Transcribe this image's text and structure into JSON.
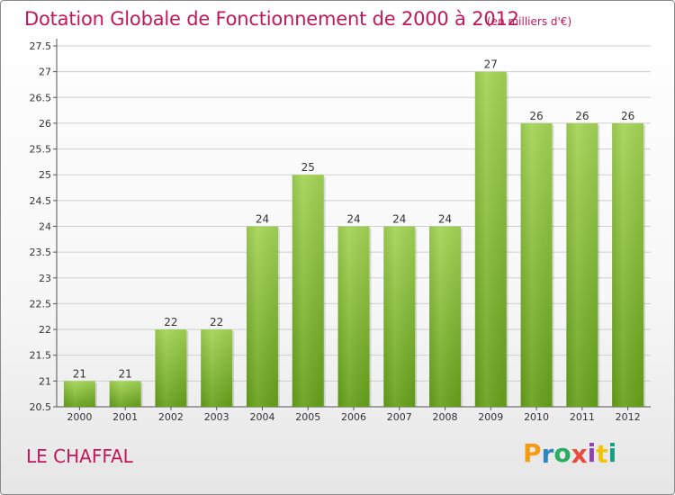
{
  "header": {
    "title": "Dotation Globale de Fonctionnement de 2000 à 2012",
    "subtitle": "(en milliers d'€)"
  },
  "footer": {
    "commune": "LE CHAFFAL",
    "logo": "Proxiti"
  },
  "chart_data": {
    "type": "bar",
    "title": "Dotation Globale de Fonctionnement de 2000 à 2012",
    "subtitle": "(en milliers d'€)",
    "xlabel": "",
    "ylabel": "",
    "categories": [
      "2000",
      "2001",
      "2002",
      "2003",
      "2004",
      "2005",
      "2006",
      "2007",
      "2008",
      "2009",
      "2010",
      "2011",
      "2012"
    ],
    "values": [
      21,
      21,
      22,
      22,
      24,
      25,
      24,
      24,
      24,
      27,
      26,
      26,
      26
    ],
    "data_labels": [
      "21",
      "21",
      "22",
      "22",
      "24",
      "25",
      "24",
      "24",
      "24",
      "27",
      "26",
      "26",
      "26"
    ],
    "ylim": [
      20.5,
      27.5
    ],
    "yticks": [
      "20.5",
      "21",
      "21.5",
      "22",
      "22.5",
      "23",
      "23.5",
      "24",
      "24.5",
      "25",
      "25.5",
      "26",
      "26.5",
      "27",
      "27.5"
    ],
    "grid": true,
    "bar_color_top": "#9ccf4e",
    "bar_color_bottom": "#6ea81f",
    "text_color": "#c2185b"
  }
}
